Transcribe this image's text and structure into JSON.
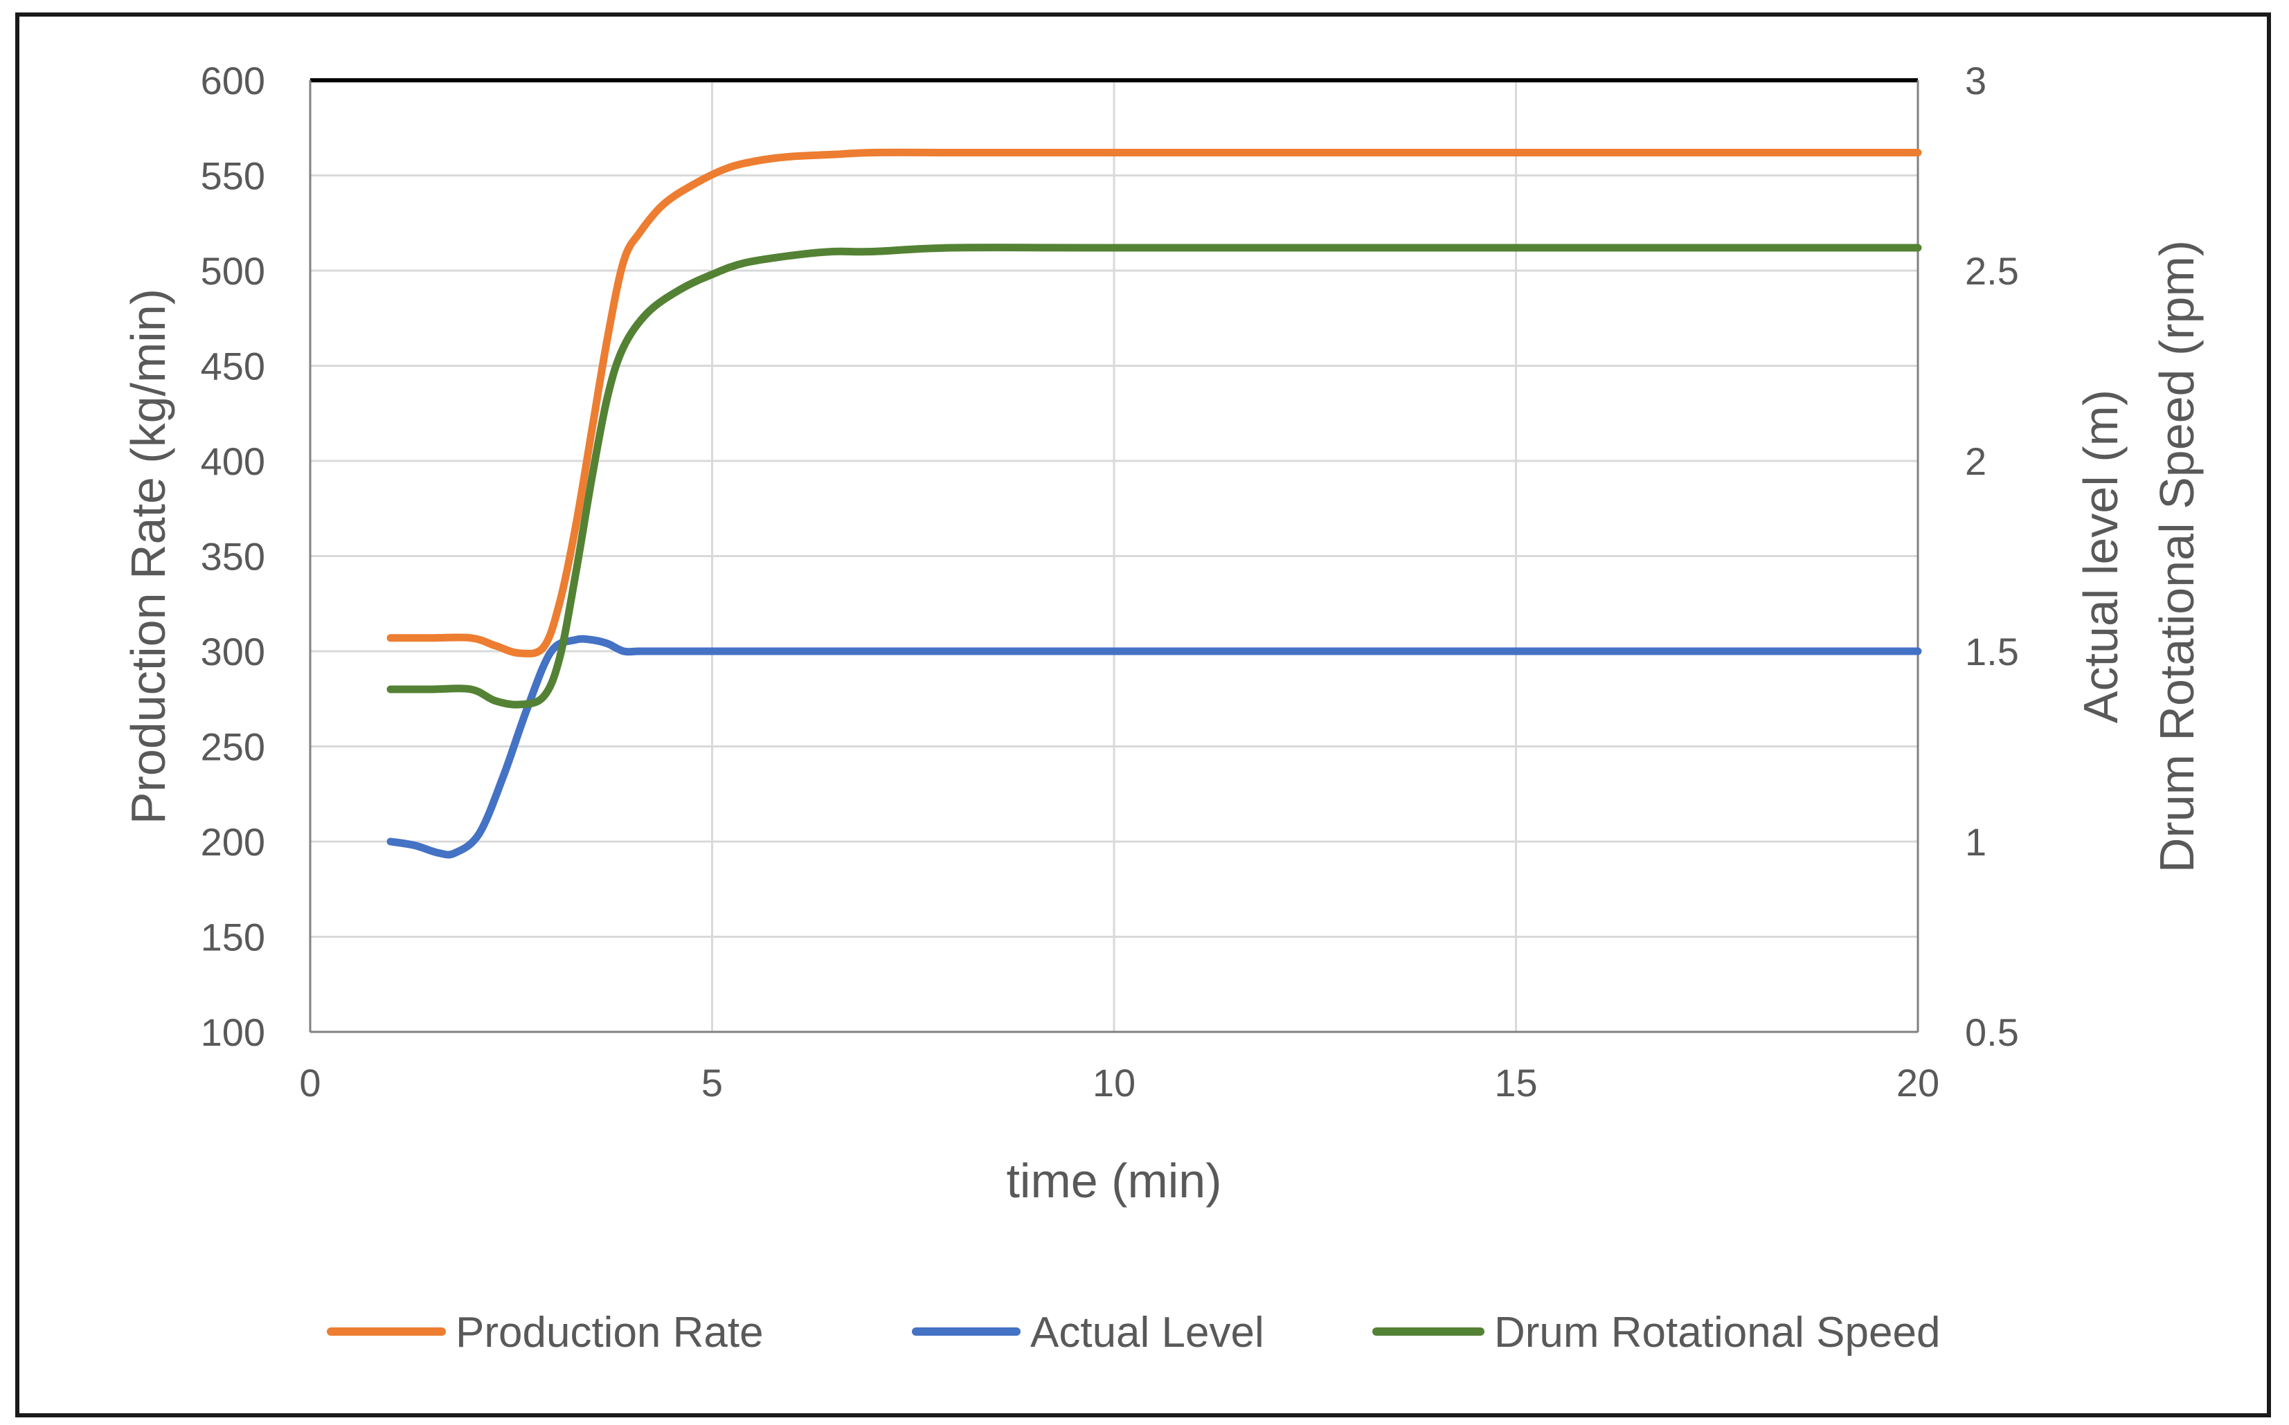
{
  "chart_data": {
    "type": "line",
    "title": "",
    "xlabel": "time (min)",
    "ylabel_left": "Production Rate (kg/min)",
    "ylabel_right_lines": [
      "Actual level (m)",
      "Drum Rotational Speed (rpm)"
    ],
    "xlim": [
      0,
      20
    ],
    "ylim_left": [
      100,
      600
    ],
    "ylim_right": [
      0.5,
      3
    ],
    "x_ticks": [
      0,
      5,
      10,
      15,
      20
    ],
    "x_tick_labels": [
      "0",
      "5",
      "10",
      "15",
      "20"
    ],
    "y_left_ticks": [
      100,
      150,
      200,
      250,
      300,
      350,
      400,
      450,
      500,
      550,
      600
    ],
    "y_left_tick_labels": [
      "100",
      "150",
      "200",
      "250",
      "300",
      "350",
      "400",
      "450",
      "500",
      "550",
      "600"
    ],
    "y_right_ticks": [
      0.5,
      1,
      1.5,
      2,
      2.5,
      3
    ],
    "y_right_tick_labels": [
      "0.5",
      "1",
      "1.5",
      "2",
      "2.5",
      "3"
    ],
    "grid": true,
    "legend_position": "bottom",
    "series": [
      {
        "name": "Production Rate",
        "axis": "left",
        "color": "#ED7D31",
        "x": [
          1,
          1.5,
          2,
          2.3,
          2.6,
          2.9,
          3.1,
          3.3,
          3.5,
          3.7,
          3.9,
          4.1,
          4.4,
          4.8,
          5.2,
          5.6,
          6,
          6.5,
          7,
          8,
          9,
          10,
          12,
          15,
          20
        ],
        "y": [
          307,
          307,
          307,
          303,
          299,
          302,
          325,
          365,
          415,
          465,
          505,
          520,
          535,
          546,
          554,
          558,
          560,
          561,
          562,
          562,
          562,
          562,
          562,
          562,
          562
        ]
      },
      {
        "name": "Actual Level",
        "axis": "right",
        "color": "#4472C4",
        "x": [
          1,
          1.3,
          1.6,
          1.8,
          2.1,
          2.4,
          2.7,
          3,
          3.3,
          3.5,
          3.7,
          3.9,
          4.1,
          4.5,
          5,
          10,
          15,
          20
        ],
        "y": [
          1.0,
          0.99,
          0.97,
          0.97,
          1.02,
          1.17,
          1.35,
          1.5,
          1.53,
          1.53,
          1.52,
          1.5,
          1.5,
          1.5,
          1.5,
          1.5,
          1.5,
          1.5
        ]
      },
      {
        "name": "Drum Rotational Speed",
        "axis": "right",
        "color": "#548235",
        "x": [
          1,
          1.5,
          2,
          2.3,
          2.6,
          2.9,
          3.1,
          3.3,
          3.5,
          3.7,
          3.9,
          4.2,
          4.6,
          5,
          5.4,
          6,
          6.5,
          7,
          8,
          10,
          15,
          20
        ],
        "y": [
          1.4,
          1.4,
          1.4,
          1.37,
          1.36,
          1.38,
          1.48,
          1.7,
          1.95,
          2.17,
          2.3,
          2.39,
          2.45,
          2.49,
          2.52,
          2.54,
          2.55,
          2.55,
          2.56,
          2.56,
          2.56,
          2.56
        ]
      }
    ]
  }
}
